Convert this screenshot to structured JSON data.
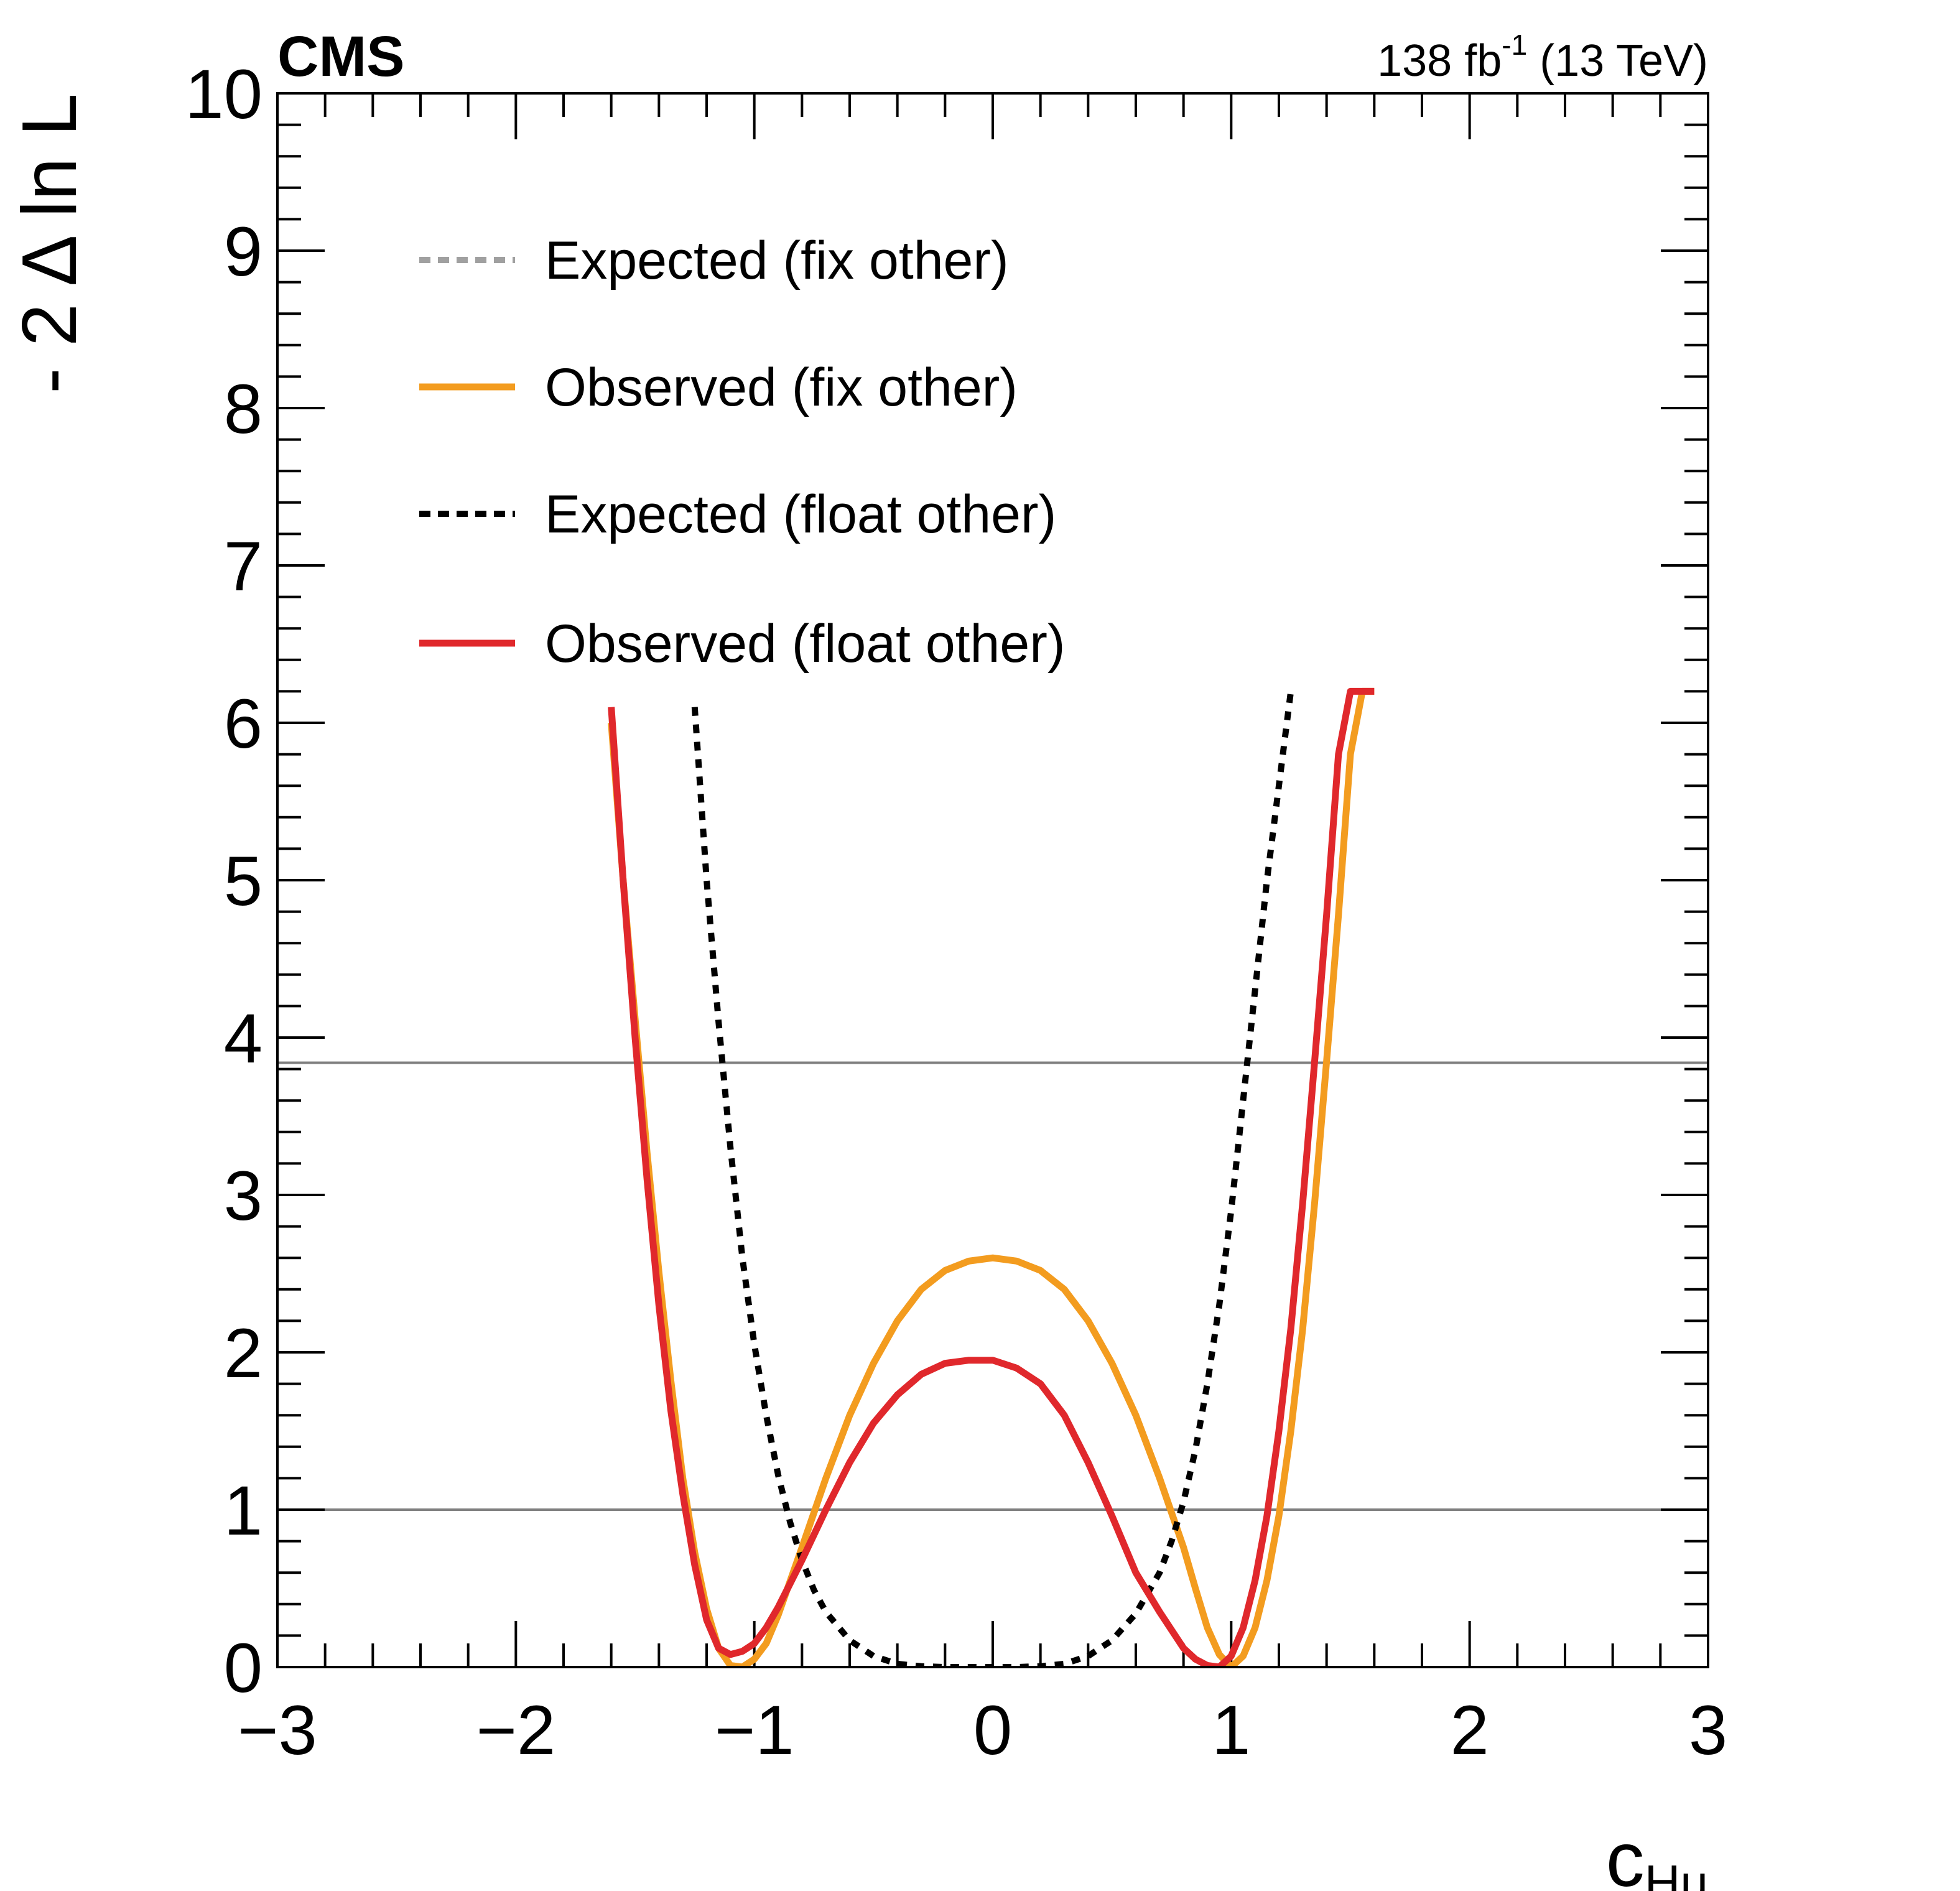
{
  "chart_data": {
    "type": "line",
    "experiment_label": "CMS",
    "lumi_label": {
      "main": "138 fb",
      "sup": "-1",
      "tail": " (13 TeV)"
    },
    "xlabel": {
      "main": "c",
      "sub": "Hu"
    },
    "ylabel": "- 2 Δ ln L",
    "xlim": [
      -3,
      3
    ],
    "ylim": [
      0,
      10
    ],
    "xticks": [
      "−3",
      "−2",
      "−1",
      "0",
      "1",
      "2",
      "3"
    ],
    "yticks": [
      "0",
      "1",
      "2",
      "3",
      "4",
      "5",
      "6",
      "7",
      "8",
      "9",
      "10"
    ],
    "reference_lines": [
      1,
      3.84
    ],
    "legend_position": "top-left",
    "grid": false,
    "series": [
      {
        "name": "Expected (fix other)",
        "color": "#a0a0a0",
        "style": "dashed",
        "in_plot": false,
        "x": [],
        "y": []
      },
      {
        "name": "Observed (fix other)",
        "color": "#f39c1f",
        "style": "solid",
        "x": [
          -1.6,
          -1.55,
          -1.5,
          -1.45,
          -1.4,
          -1.35,
          -1.3,
          -1.25,
          -1.2,
          -1.15,
          -1.1,
          -1.05,
          -1.0,
          -0.95,
          -0.9,
          -0.8,
          -0.7,
          -0.6,
          -0.5,
          -0.4,
          -0.3,
          -0.2,
          -0.1,
          0.0,
          0.1,
          0.2,
          0.3,
          0.4,
          0.5,
          0.6,
          0.7,
          0.8,
          0.85,
          0.9,
          0.95,
          1.0,
          1.05,
          1.1,
          1.15,
          1.2,
          1.25,
          1.3,
          1.35,
          1.4,
          1.45,
          1.5,
          1.55,
          1.6
        ],
        "y": [
          6.0,
          5.0,
          4.12,
          3.27,
          2.51,
          1.82,
          1.2,
          0.73,
          0.37,
          0.12,
          0.01,
          0.0,
          0.05,
          0.15,
          0.33,
          0.76,
          1.2,
          1.6,
          1.93,
          2.2,
          2.4,
          2.52,
          2.58,
          2.6,
          2.58,
          2.52,
          2.4,
          2.2,
          1.93,
          1.6,
          1.2,
          0.76,
          0.5,
          0.25,
          0.08,
          0.0,
          0.07,
          0.25,
          0.55,
          0.96,
          1.5,
          2.15,
          2.95,
          3.85,
          4.78,
          5.8,
          6.2,
          6.2
        ]
      },
      {
        "name": "Expected (float other)",
        "color": "#000000",
        "style": "dashed",
        "x": [
          -1.25,
          -1.2,
          -1.15,
          -1.1,
          -1.05,
          -1.0,
          -0.95,
          -0.9,
          -0.85,
          -0.8,
          -0.75,
          -0.7,
          -0.6,
          -0.5,
          -0.4,
          -0.3,
          -0.2,
          -0.1,
          0.0,
          0.1,
          0.2,
          0.3,
          0.4,
          0.5,
          0.6,
          0.7,
          0.75,
          0.8,
          0.85,
          0.9,
          0.95,
          1.0,
          1.05,
          1.1,
          1.15,
          1.2,
          1.25
        ],
        "y": [
          6.1,
          5.0,
          4.1,
          3.3,
          2.6,
          2.05,
          1.6,
          1.22,
          0.92,
          0.68,
          0.49,
          0.35,
          0.17,
          0.07,
          0.02,
          0.005,
          0.0,
          0.0,
          0.0,
          0.0,
          0.005,
          0.02,
          0.07,
          0.17,
          0.34,
          0.6,
          0.8,
          1.05,
          1.38,
          1.8,
          2.3,
          2.9,
          3.6,
          4.3,
          5.0,
          5.6,
          6.2
        ]
      },
      {
        "name": "Observed (float other)",
        "color": "#e0282c",
        "style": "solid",
        "x": [
          -1.6,
          -1.55,
          -1.5,
          -1.45,
          -1.4,
          -1.35,
          -1.3,
          -1.25,
          -1.2,
          -1.15,
          -1.1,
          -1.05,
          -1.0,
          -0.95,
          -0.9,
          -0.8,
          -0.7,
          -0.6,
          -0.5,
          -0.4,
          -0.3,
          -0.2,
          -0.1,
          0.0,
          0.1,
          0.2,
          0.3,
          0.4,
          0.5,
          0.6,
          0.7,
          0.8,
          0.85,
          0.9,
          0.95,
          1.0,
          1.05,
          1.1,
          1.15,
          1.2,
          1.25,
          1.3,
          1.35,
          1.4,
          1.45,
          1.5,
          1.55,
          1.6
        ],
        "y": [
          6.1,
          5.0,
          4.0,
          3.1,
          2.3,
          1.63,
          1.1,
          0.65,
          0.3,
          0.12,
          0.08,
          0.1,
          0.15,
          0.25,
          0.38,
          0.68,
          1.0,
          1.3,
          1.55,
          1.73,
          1.86,
          1.93,
          1.95,
          1.95,
          1.9,
          1.8,
          1.6,
          1.3,
          0.96,
          0.6,
          0.35,
          0.12,
          0.05,
          0.01,
          0.0,
          0.07,
          0.25,
          0.55,
          0.96,
          1.5,
          2.15,
          2.95,
          3.85,
          4.78,
          5.8,
          6.2,
          6.2,
          6.2
        ]
      }
    ]
  }
}
